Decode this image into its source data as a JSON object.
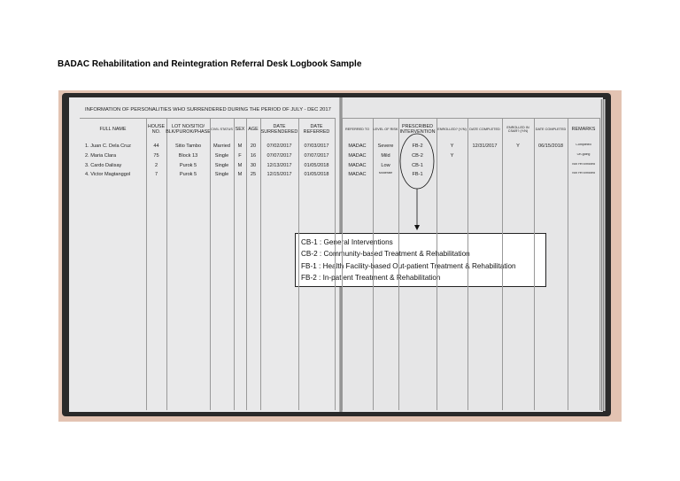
{
  "title": "BADAC Rehabilitation and Reintegration Referral Desk Logbook Sample",
  "book": {
    "header": "INFORMATION OF PERSONALITIES WHO SURRENDERED DURING THE PERIOD OF JULY - DEC 2017",
    "left_columns": [
      "FULL NAME",
      "HOUSE NO.",
      "LOT NO/SITIO/ BLK/PUROK/PHASE",
      "CIVIL STATUS",
      "SEX",
      "AGE",
      "DATE SURRENDERED",
      "DATE REFERRED"
    ],
    "right_columns": [
      "REFERRED TO",
      "LEVEL OF RISK",
      "PRESCRIBED INTERVENTION",
      "ENROLLED? (Y/N)",
      "DATE COMPLETED",
      "ENROLLED IN CSAR? (Y/N)",
      "DATE COMPLETED",
      "REMARKS"
    ],
    "rows": [
      {
        "left": [
          "1. Juan C. Dela Cruz",
          44,
          "Sitio Tambo",
          "Married",
          "M",
          20,
          "07/02/2017",
          "07/03/2017"
        ],
        "right": [
          "MADAC",
          "Severe",
          "FB-2",
          "Y",
          "12/31/2017",
          "Y",
          "06/15/2018",
          "Completed"
        ]
      },
      {
        "left": [
          "2. Maria Clara",
          75,
          "Block 13",
          "Single",
          "F",
          16,
          "07/07/2017",
          "07/07/2017"
        ],
        "right": [
          "MADAC",
          "Mild",
          "CB-2",
          "Y",
          null,
          null,
          null,
          "On-going"
        ]
      },
      {
        "left": [
          "3. Cardo Dalisay",
          2,
          "Purok 5",
          "Single",
          "M",
          30,
          "12/13/2017",
          "01/05/2018"
        ],
        "right": [
          "MADAC",
          "Low",
          "CB-1",
          null,
          null,
          null,
          null,
          "Not Yet Enrolled"
        ]
      },
      {
        "left": [
          "4. Victor Magtanggol",
          7,
          "Purok 5",
          "Single",
          "M",
          25,
          "12/15/2017",
          "01/05/2018"
        ],
        "right": [
          "MADAC",
          "Moderate",
          "FB-1",
          null,
          null,
          null,
          null,
          "Not Yet Enrolled"
        ]
      }
    ]
  },
  "legend": [
    "CB-1 : General Interventions",
    "CB-2 : Community-based Treatment & Rehabilitation",
    "FB-1 : Health Facility-based Out-patient Treatment & Rehabilitation",
    "FB-2 : In-patient Treatment & Rehabilitation"
  ]
}
